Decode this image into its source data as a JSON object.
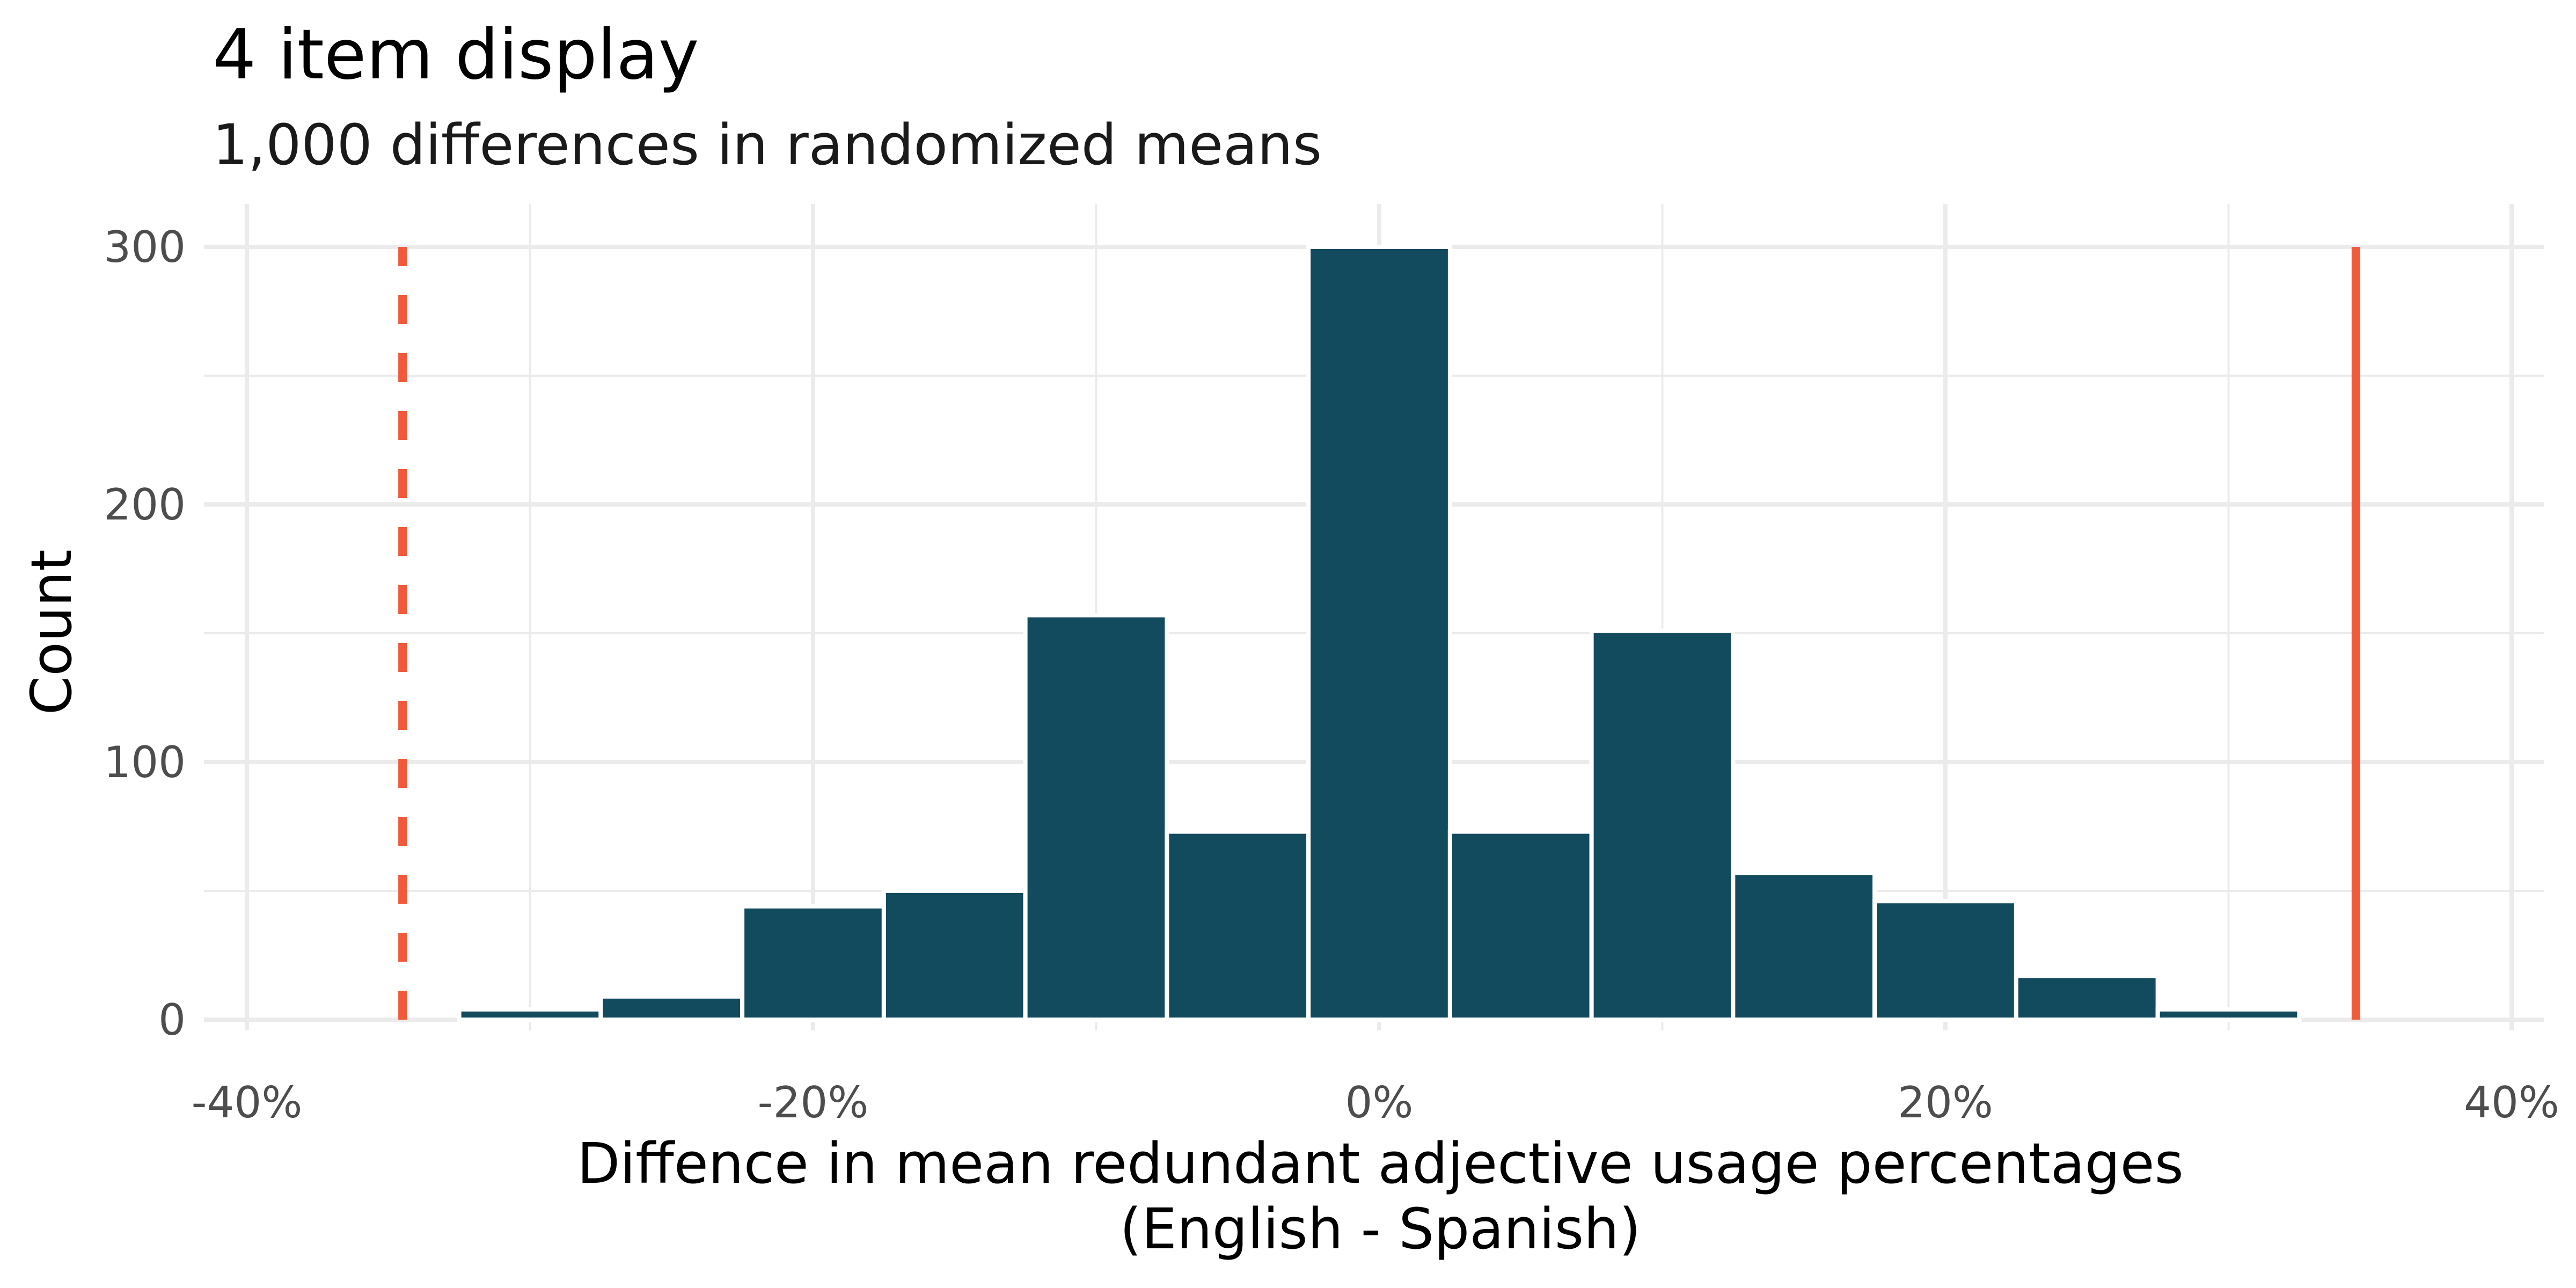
{
  "chart_data": {
    "type": "bar",
    "title": "4 item display",
    "subtitle": "1,000 differences in randomized means",
    "xlabel": [
      "Diffence in mean redundant adjective usage percentages",
      "(English - Spanish)"
    ],
    "ylabel": "Count",
    "xlim": [
      -0.4,
      0.4
    ],
    "ylim": [
      0,
      300
    ],
    "x_ticks": [
      -0.4,
      -0.2,
      0,
      0.2,
      0.4
    ],
    "x_tick_labels": [
      "-40%",
      "-20%",
      "0%",
      "20%",
      "40%"
    ],
    "y_ticks": [
      0,
      100,
      200,
      300
    ],
    "y_tick_labels": [
      "0",
      "100",
      "200",
      "300"
    ],
    "bin_width": 0.05,
    "bins": [
      {
        "center": -0.3,
        "count": 4
      },
      {
        "center": -0.25,
        "count": 9
      },
      {
        "center": -0.2,
        "count": 44
      },
      {
        "center": -0.15,
        "count": 50
      },
      {
        "center": -0.1,
        "count": 157
      },
      {
        "center": -0.05,
        "count": 73
      },
      {
        "center": 0.0,
        "count": 300
      },
      {
        "center": 0.05,
        "count": 73
      },
      {
        "center": 0.1,
        "count": 151
      },
      {
        "center": 0.15,
        "count": 57
      },
      {
        "center": 0.2,
        "count": 46
      },
      {
        "center": 0.25,
        "count": 17
      },
      {
        "center": 0.3,
        "count": 4
      }
    ],
    "reference_lines": [
      {
        "x": -0.345,
        "style": "dashed",
        "color": "#f05a3a"
      },
      {
        "x": 0.345,
        "style": "solid",
        "color": "#f05a3a"
      }
    ],
    "bar_color": "#124a5e",
    "grid": true
  }
}
